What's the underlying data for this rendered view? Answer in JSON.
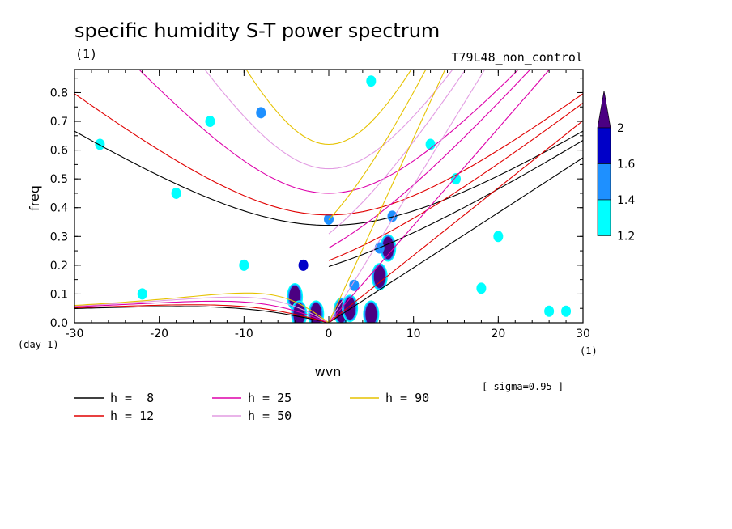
{
  "chart_data": {
    "type": "heatmap",
    "title": "specific humidity S-T power spectrum",
    "subtitle_left": "(1)",
    "subtitle_right": "T79L48_non_control",
    "xlabel": "wvn",
    "ylabel": "freq",
    "x_unit_label": "(1)",
    "y_unit_label": "(day-1)",
    "xlim": [
      -30,
      30
    ],
    "ylim": [
      0,
      0.88
    ],
    "x_ticks": [
      -30,
      -20,
      -10,
      0,
      10,
      20,
      30
    ],
    "x_tick_labels": [
      "-30",
      "-20",
      "-10",
      "0",
      "10",
      "20",
      "30"
    ],
    "y_ticks": [
      0,
      0.1,
      0.2,
      0.3,
      0.4,
      0.5,
      0.6,
      0.7,
      0.8
    ],
    "y_tick_labels": [
      "0.0",
      "0.1",
      "0.2",
      "0.3",
      "0.4",
      "0.5",
      "0.6",
      "0.7",
      "0.8"
    ],
    "annotation": "[ sigma=0.95 ]",
    "colorbar": {
      "levels": [
        1.2,
        1.4,
        1.6,
        2
      ],
      "labels": [
        "1.2",
        "1.4",
        "1.6",
        "2"
      ],
      "colors": [
        "#00ffff",
        "#1e90ff",
        "#0000c8",
        "#4b0082"
      ]
    },
    "dispersion_curves": [
      {
        "name": "h =  8",
        "h": 8,
        "color": "#000000"
      },
      {
        "name": "h = 12",
        "h": 12,
        "color": "#e00000"
      },
      {
        "name": "h = 25",
        "h": 25,
        "color": "#dd00aa"
      },
      {
        "name": "h = 50",
        "h": 50,
        "color": "#e29be2"
      },
      {
        "name": "h = 90",
        "h": 90,
        "color": "#e6c200"
      }
    ],
    "significant_blobs": [
      {
        "x": -4,
        "y": 0.09,
        "level": 2
      },
      {
        "x": -3.5,
        "y": 0.03,
        "level": 2
      },
      {
        "x": -1.5,
        "y": 0.03,
        "level": 2
      },
      {
        "x": 1.5,
        "y": 0.04,
        "level": 2
      },
      {
        "x": 2.5,
        "y": 0.05,
        "level": 2
      },
      {
        "x": 5,
        "y": 0.03,
        "level": 2
      },
      {
        "x": 6,
        "y": 0.16,
        "level": 2
      },
      {
        "x": 7,
        "y": 0.26,
        "level": 2
      },
      {
        "x": 7.5,
        "y": 0.37,
        "level": 1.4
      },
      {
        "x": -3,
        "y": 0.2,
        "level": 1.6
      },
      {
        "x": 0,
        "y": 0.36,
        "level": 1.4
      },
      {
        "x": 3,
        "y": 0.13,
        "level": 1.4
      },
      {
        "x": 6,
        "y": 0.26,
        "level": 1.4
      },
      {
        "x": -8,
        "y": 0.73,
        "level": 1.4
      },
      {
        "x": 26,
        "y": 0.04,
        "level": 1.2
      },
      {
        "x": 28,
        "y": 0.04,
        "level": 1.2
      },
      {
        "x": -27,
        "y": 0.62,
        "level": 1.2
      },
      {
        "x": -14,
        "y": 0.7,
        "level": 1.2
      },
      {
        "x": -22,
        "y": 0.1,
        "level": 1.2
      },
      {
        "x": 18,
        "y": 0.12,
        "level": 1.2
      },
      {
        "x": -18,
        "y": 0.45,
        "level": 1.2
      },
      {
        "x": 12,
        "y": 0.62,
        "level": 1.2
      },
      {
        "x": 5,
        "y": 0.84,
        "level": 1.2
      },
      {
        "x": -10,
        "y": 0.2,
        "level": 1.2
      },
      {
        "x": 20,
        "y": 0.3,
        "level": 1.2
      },
      {
        "x": 15,
        "y": 0.5,
        "level": 1.2
      }
    ]
  }
}
